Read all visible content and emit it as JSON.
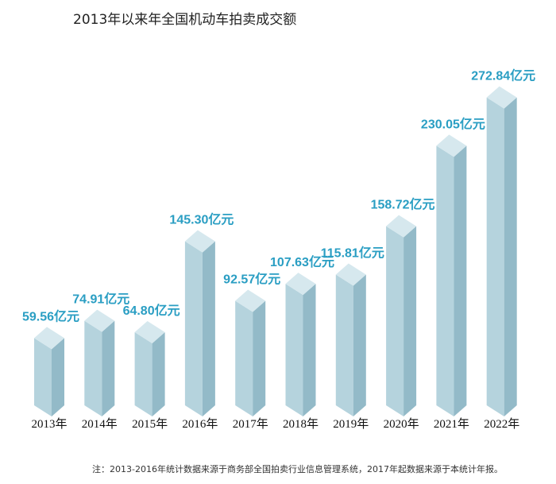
{
  "title": "2013年以来年全国机动车拍卖成交额",
  "note": "注：2013-2016年统计数据来源于商务部全国拍卖行业信息管理系统，2017年起数据来源于本统计年报。",
  "chart_data": {
    "type": "bar",
    "title": "2013年以来年全国机动车拍卖成交额",
    "categories": [
      "2013年",
      "2014年",
      "2015年",
      "2016年",
      "2017年",
      "2018年",
      "2019年",
      "2020年",
      "2021年",
      "2022年"
    ],
    "values": [
      59.56,
      74.91,
      64.8,
      145.3,
      92.57,
      107.63,
      115.81,
      158.72,
      230.05,
      272.84
    ],
    "value_labels": [
      "59.56亿元",
      "74.91亿元",
      "64.80亿元",
      "145.30亿元",
      "92.57亿元",
      "107.63亿元",
      "115.81亿元",
      "158.72亿元",
      "230.05亿元",
      "272.84亿元"
    ],
    "unit": "亿元",
    "grid": false,
    "legend": "none",
    "colors": {
      "bar_front": "#b5d3dd",
      "bar_side": "#93bac8",
      "bar_top": "#d6e8ee",
      "label": "#2a9ec3"
    }
  }
}
